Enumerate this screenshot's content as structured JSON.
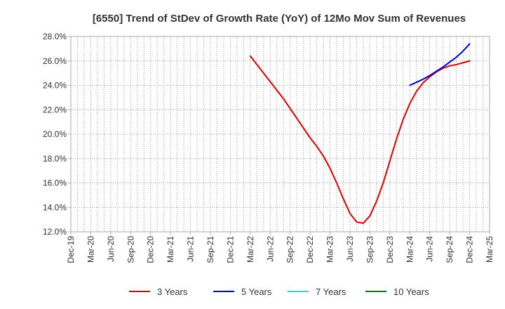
{
  "chart_data": {
    "type": "line",
    "title": "[6550]  Trend of StDev of Growth Rate (YoY) of 12Mo Mov Sum of Revenues",
    "xlabel": "",
    "ylabel": "",
    "ylim": [
      12.0,
      28.0
    ],
    "y_ticks": [
      "12.0%",
      "14.0%",
      "16.0%",
      "18.0%",
      "20.0%",
      "22.0%",
      "24.0%",
      "26.0%",
      "28.0%"
    ],
    "y_tick_values": [
      12,
      14,
      16,
      18,
      20,
      22,
      24,
      26,
      28
    ],
    "x_ticks": [
      "Dec-19",
      "Mar-20",
      "Jun-20",
      "Sep-20",
      "Dec-20",
      "Mar-21",
      "Jun-21",
      "Sep-21",
      "Dec-21",
      "Mar-22",
      "Jun-22",
      "Sep-22",
      "Dec-22",
      "Mar-23",
      "Jun-23",
      "Sep-23",
      "Dec-23",
      "Mar-24",
      "Jun-24",
      "Sep-24",
      "Dec-24",
      "Mar-25"
    ],
    "x_range_months": [
      0,
      63
    ],
    "grid": true,
    "legend_position": "bottom",
    "series": [
      {
        "name": "3 Years",
        "color": "#dd0000",
        "x_months": [
          27,
          28,
          29,
          30,
          31,
          32,
          33,
          34,
          35,
          36,
          37,
          38,
          39,
          40,
          41,
          42,
          43,
          44,
          45,
          46,
          47,
          48,
          49,
          50,
          51,
          52,
          53,
          54,
          55,
          56,
          57,
          58,
          59,
          60
        ],
        "values": [
          26.4,
          25.7,
          25.0,
          24.3,
          23.6,
          22.9,
          22.1,
          21.3,
          20.5,
          19.7,
          19.0,
          18.2,
          17.2,
          16.0,
          14.7,
          13.5,
          12.8,
          12.7,
          13.3,
          14.5,
          16.0,
          17.8,
          19.6,
          21.2,
          22.5,
          23.5,
          24.2,
          24.7,
          25.1,
          25.4,
          25.6,
          25.7,
          25.85,
          26.0
        ]
      },
      {
        "name": "5 Years",
        "color": "#0000cc",
        "x_months": [
          51,
          52,
          53,
          54,
          55,
          56,
          57,
          58,
          59,
          60
        ],
        "values": [
          24.0,
          24.25,
          24.5,
          24.8,
          25.15,
          25.5,
          25.9,
          26.3,
          26.8,
          27.4
        ]
      },
      {
        "name": "7 Years",
        "color": "#00e5ee",
        "x_months": [],
        "values": []
      },
      {
        "name": "10 Years",
        "color": "#008000",
        "x_months": [],
        "values": []
      }
    ]
  }
}
